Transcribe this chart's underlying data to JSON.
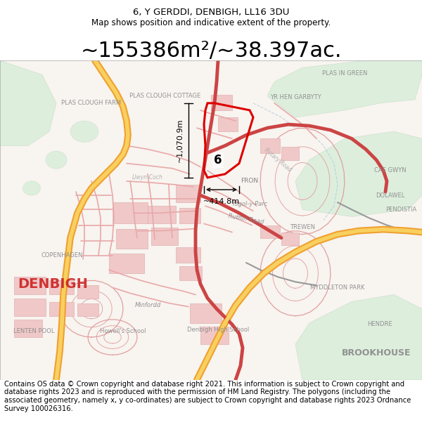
{
  "title_line1": "6, Y GERDDI, DENBIGH, LL16 3DU",
  "title_line2": "Map shows position and indicative extent of the property.",
  "measurement_text": "~155386m²/~38.397ac.",
  "dim_width_text": "~414.8m",
  "dim_height_text": "~1,070.9m",
  "property_number": "6",
  "footer_text": "Contains OS data © Crown copyright and database right 2021. This information is subject to Crown copyright and database rights 2023 and is reproduced with the permission of HM Land Registry. The polygons (including the associated geometry, namely x, y co-ordinates) are subject to Crown copyright and database rights 2023 Ordnance Survey 100026316.",
  "bg_color": "#ffffff",
  "title_fontsize": 9.5,
  "subtitle_fontsize": 8.5,
  "measure_fontsize": 22,
  "footer_fontsize": 7.2,
  "fig_width": 6.0,
  "fig_height": 6.25
}
